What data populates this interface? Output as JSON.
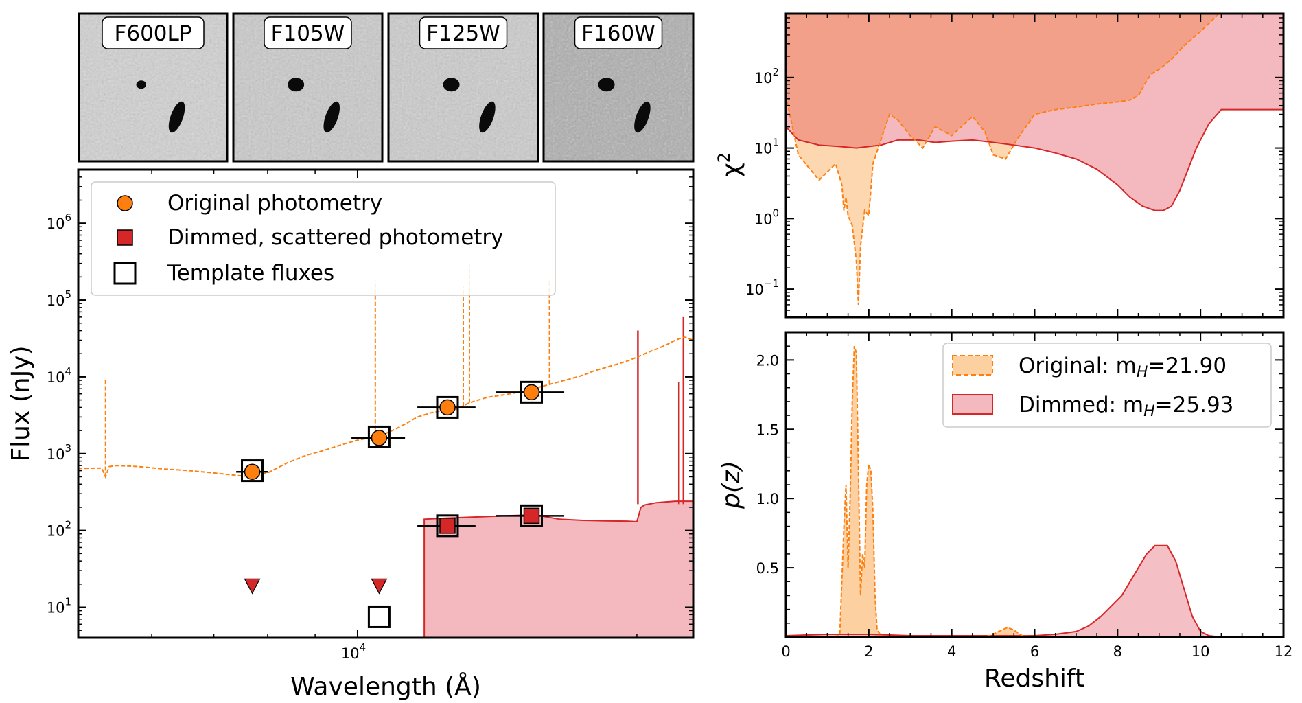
{
  "chart_data": [
    {
      "id": "thumbnails",
      "type": "image-grid",
      "filters": [
        "F600LP",
        "F105W",
        "F125W",
        "F160W"
      ]
    },
    {
      "id": "sed",
      "type": "line",
      "xlabel": "Wavelength (Å)",
      "ylabel": "Flux (nJy)",
      "xscale": "log",
      "yscale": "log",
      "xlim": [
        5000,
        23000
      ],
      "ylim": [
        4,
        5000000
      ],
      "x_ticks": [
        {
          "value": 10000,
          "base": "10",
          "exp": "4"
        }
      ],
      "y_ticks": [
        {
          "value": 10,
          "base": "10",
          "exp": "1"
        },
        {
          "value": 100,
          "base": "10",
          "exp": "2"
        },
        {
          "value": 1000,
          "base": "10",
          "exp": "3"
        },
        {
          "value": 10000,
          "base": "10",
          "exp": "4"
        },
        {
          "value": 100000,
          "base": "10",
          "exp": "5"
        },
        {
          "value": 1000000,
          "base": "10",
          "exp": "6"
        }
      ],
      "legend": {
        "position": "upper-left",
        "entries": [
          "Original photometry",
          "Dimmed, scattered photometry",
          "Template fluxes"
        ]
      },
      "colors": {
        "original": "#ff7f0e",
        "dimmed": "#d62728",
        "dimmed_fill": "#f4b9bf"
      },
      "series": [
        {
          "name": "Original photometry",
          "marker": "circle",
          "points": [
            {
              "x": 7700,
              "y": 580,
              "xerr": 300
            },
            {
              "x": 10550,
              "y": 1600,
              "xerr": 700
            },
            {
              "x": 12500,
              "y": 4000,
              "xerr": 900
            },
            {
              "x": 15400,
              "y": 6300,
              "xerr": 1300
            }
          ]
        },
        {
          "name": "Dimmed, scattered photometry",
          "marker": "square",
          "points": [
            {
              "x": 12500,
              "y": 115,
              "xerr": 900
            },
            {
              "x": 15400,
              "y": 155,
              "xerr": 1300
            }
          ],
          "upper_limits": [
            {
              "x": 7700,
              "y": 19
            },
            {
              "x": 10550,
              "y": 19
            }
          ]
        },
        {
          "name": "Template fluxes",
          "marker": "open-square",
          "points": [
            {
              "x": 7700,
              "y": 600
            },
            {
              "x": 10550,
              "y": 1650
            },
            {
              "x": 12500,
              "y": 4000
            },
            {
              "x": 15400,
              "y": 6300
            },
            {
              "x": 12500,
              "y": 115
            },
            {
              "x": 15400,
              "y": 155
            },
            {
              "x": 10550,
              "y": 7.5
            }
          ]
        }
      ],
      "template_original": {
        "style": "dashed",
        "x": [
          5000,
          5300,
          5350,
          5400,
          5500,
          5800,
          6200,
          6600,
          7000,
          7400,
          7700,
          8000,
          8400,
          8800,
          9200,
          9600,
          10000,
          10300,
          10400,
          10600,
          10800,
          11000,
          11300,
          11600,
          12000,
          12300,
          12600,
          12800,
          13000,
          13200,
          13500,
          13800,
          14200,
          14600,
          15000,
          15400,
          15800,
          16300,
          17000,
          17500,
          18000,
          18500,
          19000,
          19500,
          20000,
          20500,
          21000,
          21500,
          22000,
          22500,
          23000
        ],
        "y": [
          640,
          650,
          500,
          680,
          700,
          680,
          630,
          600,
          560,
          520,
          500,
          560,
          760,
          950,
          1100,
          1300,
          1500,
          1600,
          1700,
          1750,
          1900,
          2100,
          2500,
          3000,
          3400,
          3600,
          3700,
          3800,
          4200,
          4600,
          5000,
          5400,
          5700,
          6000,
          6400,
          7000,
          7500,
          8300,
          9500,
          10500,
          12000,
          13200,
          14500,
          16000,
          18000,
          20500,
          23000,
          26000,
          30000,
          33000,
          30000
        ]
      },
      "template_original_lines": [
        {
          "x": 5350,
          "peak": 9000
        },
        {
          "x": 10450,
          "peak": 180000
        },
        {
          "x": 13000,
          "peak": 150000
        },
        {
          "x": 13200,
          "peak": 290000
        },
        {
          "x": 16100,
          "peak": 180000
        }
      ],
      "template_dimmed": {
        "style": "solid-filled",
        "break_x": 11800,
        "x": [
          11800,
          12500,
          13500,
          14500,
          15500,
          16500,
          17500,
          18500,
          19500,
          20000,
          20200,
          20400,
          21000,
          21500,
          22000,
          22500,
          23000
        ],
        "y": [
          140,
          145,
          150,
          155,
          160,
          140,
          135,
          133,
          132,
          130,
          200,
          215,
          230,
          235,
          240,
          240,
          240
        ]
      },
      "template_dimmed_lines": [
        {
          "x": 20050,
          "peak": 40000
        },
        {
          "x": 22200,
          "peak": 8500
        },
        {
          "x": 22450,
          "peak": 60000
        }
      ]
    },
    {
      "id": "chi2",
      "type": "area",
      "xlabel": "",
      "ylabel": "χ",
      "ylabel_sup": "2",
      "yscale": "log",
      "xlim": [
        0,
        12
      ],
      "ylim": [
        0.04,
        800
      ],
      "y_ticks": [
        {
          "value": 0.1,
          "base": "10",
          "exp": "−1"
        },
        {
          "value": 1,
          "base": "10",
          "exp": "0"
        },
        {
          "value": 10,
          "base": "10",
          "exp": "1"
        },
        {
          "value": 100,
          "base": "10",
          "exp": "2"
        }
      ],
      "series": [
        {
          "name": "Original",
          "style": "dashed-filled",
          "x": [
            0,
            0.3,
            0.8,
            1.2,
            1.35,
            1.4,
            1.45,
            1.5,
            1.6,
            1.7,
            1.75,
            1.8,
            1.9,
            2.0,
            2.1,
            2.2,
            2.5,
            2.7,
            3.0,
            3.3,
            3.6,
            4.0,
            4.5,
            4.8,
            5.0,
            5.3,
            5.6,
            6.0,
            6.5,
            7.0,
            7.5,
            8.0,
            8.3,
            8.5,
            8.6,
            8.7,
            8.8,
            9.0,
            9.3,
            9.6,
            10.0,
            10.4,
            10.5,
            12
          ],
          "y": [
            55,
            8,
            3.5,
            6,
            3,
            1.3,
            2,
            1.1,
            0.8,
            0.25,
            0.06,
            0.4,
            1.3,
            1.1,
            6,
            9,
            30,
            25,
            15,
            10,
            20,
            15,
            28,
            17,
            8,
            7,
            14,
            30,
            35,
            38,
            42,
            45,
            48,
            55,
            70,
            90,
            110,
            130,
            180,
            280,
            450,
            750,
            900,
            900
          ]
        },
        {
          "name": "Dimmed",
          "style": "solid-filled",
          "x": [
            0,
            0.3,
            0.8,
            1.3,
            1.7,
            2.0,
            2.3,
            2.7,
            3.2,
            3.6,
            4.0,
            4.5,
            5.0,
            5.5,
            6.0,
            6.5,
            7.0,
            7.5,
            8.0,
            8.3,
            8.6,
            8.9,
            9.1,
            9.3,
            9.5,
            9.7,
            9.9,
            10.2,
            10.5,
            11,
            12
          ],
          "y": [
            20,
            13,
            11,
            10.5,
            10,
            10.5,
            11,
            13,
            13,
            12,
            12.5,
            13,
            12,
            11,
            10,
            8.5,
            7,
            5,
            3,
            2,
            1.5,
            1.3,
            1.3,
            1.5,
            2.5,
            5,
            10,
            22,
            35,
            35,
            35
          ]
        }
      ]
    },
    {
      "id": "pz",
      "type": "area",
      "xlabel": "Redshift",
      "ylabel": "p(z)",
      "xlim": [
        0,
        12
      ],
      "ylim": [
        0,
        2.2
      ],
      "x_ticks": [
        0,
        2,
        4,
        6,
        8,
        10,
        12
      ],
      "y_ticks": [
        "0.5",
        "1.0",
        "1.5",
        "2.0"
      ],
      "legend": {
        "position": "upper-right",
        "entries": [
          {
            "label": "Original:  m",
            "sub": "H",
            "value": "=21.90"
          },
          {
            "label": "Dimmed: m",
            "sub": "H",
            "value": "=25.93"
          }
        ]
      },
      "series": [
        {
          "name": "Original",
          "style": "dashed-filled",
          "x": [
            0,
            1.0,
            1.3,
            1.4,
            1.45,
            1.5,
            1.55,
            1.6,
            1.65,
            1.7,
            1.75,
            1.8,
            1.85,
            1.9,
            1.95,
            2.0,
            2.05,
            2.1,
            2.15,
            2.2,
            2.3,
            2.5,
            4.8,
            5.0,
            5.2,
            5.35,
            5.5,
            5.7,
            6.0,
            12
          ],
          "y": [
            0,
            0,
            0.01,
            0.8,
            1.1,
            0.5,
            1.0,
            1.7,
            2.1,
            2.05,
            1.2,
            0.3,
            0.6,
            0.5,
            1.1,
            1.25,
            1.2,
            0.9,
            0.3,
            0.05,
            0.01,
            0,
            0,
            0.02,
            0.05,
            0.07,
            0.05,
            0.01,
            0,
            0
          ]
        },
        {
          "name": "Dimmed",
          "style": "solid-filled",
          "x": [
            0,
            1.0,
            2.0,
            3.0,
            4.0,
            5.0,
            6.0,
            6.5,
            7.0,
            7.3,
            7.6,
            7.9,
            8.1,
            8.3,
            8.5,
            8.7,
            8.9,
            9.2,
            9.4,
            9.6,
            9.8,
            10.0,
            10.2,
            10.5,
            12
          ],
          "y": [
            0.01,
            0.02,
            0.02,
            0.01,
            0.01,
            0.01,
            0.01,
            0.02,
            0.04,
            0.08,
            0.15,
            0.24,
            0.3,
            0.4,
            0.5,
            0.6,
            0.66,
            0.66,
            0.55,
            0.35,
            0.15,
            0.04,
            0.01,
            0,
            0
          ]
        }
      ]
    }
  ]
}
